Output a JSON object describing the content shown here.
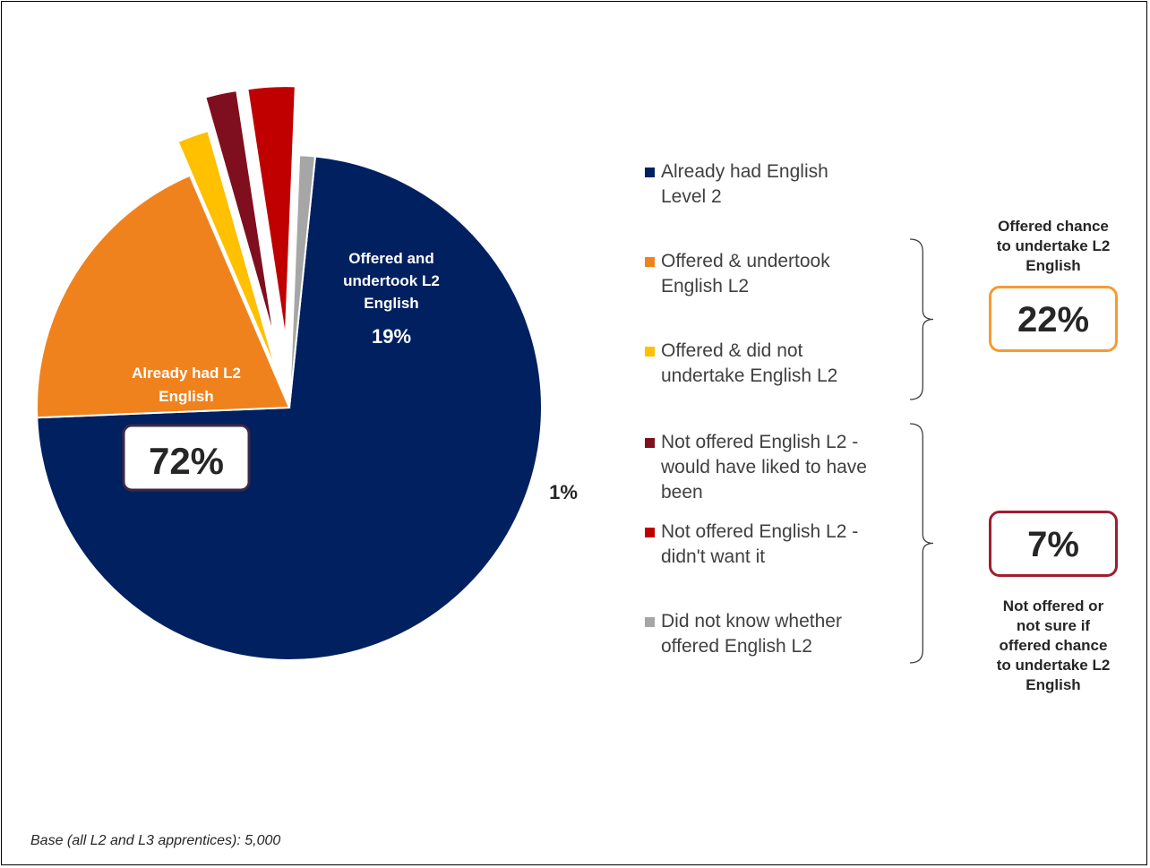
{
  "chart_data": {
    "type": "pie",
    "title": "",
    "slices": [
      {
        "legend": "Already had English Level 2",
        "value": 72,
        "label": "Already had L2 English",
        "value_label": "72%",
        "color": "#002060"
      },
      {
        "legend": "Offered & undertook English L2",
        "value": 19,
        "label": "Offered and undertook L2 English",
        "value_label": "19%",
        "color": "#F0821E"
      },
      {
        "legend": "Offered & did not undertake English L2",
        "value": 2,
        "label": "",
        "value_label": "2%",
        "color": "#FFC000"
      },
      {
        "legend": "Not offered English L2 - would have liked to have been",
        "value": 2,
        "label": "",
        "value_label": "2%",
        "color": "#7F0F1E"
      },
      {
        "legend": "Not offered English L2 - didn't want it",
        "value": 3,
        "label": "",
        "value_label": "3%",
        "color": "#C00000"
      },
      {
        "legend": "Did not know whether offered English L2",
        "value": 1,
        "label": "",
        "value_label": "1%",
        "color": "#A6A6A6"
      }
    ],
    "exploded_slices": [
      2,
      3,
      4,
      5
    ],
    "legend_position": "right"
  },
  "legend_display": [
    "Already had English\nLevel 2",
    "Offered & undertook\nEnglish L2",
    "Offered & did not\nundertake English L2",
    "Not offered English L2 -\nwould have liked to have\nbeen",
    "Not offered English L2 -\ndidn't want it",
    "Did not know whether\noffered English L2"
  ],
  "groups": [
    {
      "title": "Offered chance\nto undertake L2\nEnglish",
      "total": "22%",
      "color": "#F59B32"
    },
    {
      "title": "Not offered or\nnot sure if\noffered chance\nto undertake L2\nEnglish",
      "total": "7%",
      "color": "#A01E2D"
    }
  ],
  "footnote": "Base (all L2 and L3 apprentices): 5,000"
}
